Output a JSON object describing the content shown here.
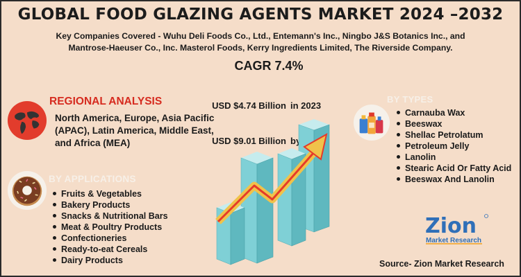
{
  "header": {
    "title": "GLOBAL FOOD GLAZING AGENTS MARKET 2024 –2032",
    "companies_line1": "Key Companies Covered - Wuhu Deli Foods Co., Ltd., Entemann's Inc., Ningbo J&S Botanics Inc., and",
    "companies_line2": "Mantrose-Haeuser Co., Inc.  Masterol Foods, Kerry Ingredients Limited, The Riverside Company."
  },
  "market": {
    "cagr": "CAGR 7.4%",
    "size_2023_value": "USD $4.74 Billion",
    "size_2023_label": "in 2023",
    "size_2032_value": "USD $9.01 Billion",
    "size_2032_label": "by 2032"
  },
  "regional": {
    "heading": "REGIONAL ANALYSIS",
    "text": "North America, Europe, Asia Pacific (APAC), Latin America, Middle East, and Africa (MEA)"
  },
  "applications": {
    "heading": "BY APPLICATIONS",
    "items": [
      "Fruits & Vegetables",
      "Bakery Products",
      "Snacks & Nutritional Bars",
      "Meat & Poultry Products",
      "Confectioneries",
      "Ready-to-eat Cereals",
      "Dairy Products"
    ]
  },
  "types": {
    "heading": "BY TYPES",
    "items": [
      "Carnauba Wax",
      "Beeswax",
      "Shellac Petrolatum",
      "Petroleum Jelly",
      "Lanolin",
      "Stearic Acid Or Fatty Acid",
      "Beeswax And Lanolin"
    ]
  },
  "logo": {
    "brand": "Zion",
    "sub": "Market Research"
  },
  "source": "Source- Zion Market Research",
  "icons": [
    "globe-icon",
    "donut-icon",
    "cleaning-bottles-icon",
    "growth-bars-icon"
  ],
  "colors": {
    "background": "#f5ddc9",
    "heading_red": "#d62b1f",
    "bar_fill": "#7fd0d6",
    "arrow": "#f0c24a"
  }
}
